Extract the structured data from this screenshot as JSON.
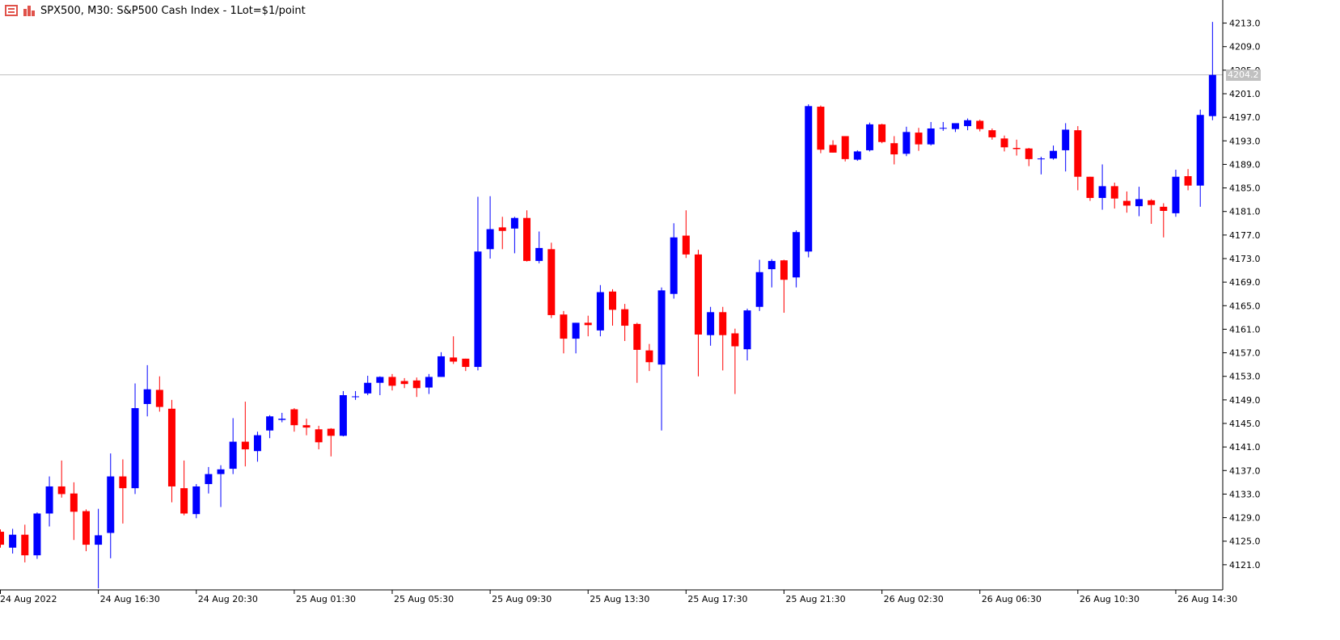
{
  "header": {
    "title": "SPX500, M30:  S&P500 Cash Index - 1Lot=$1/point"
  },
  "colors": {
    "bull": "#0000ff",
    "bear": "#ff0000",
    "axis": "#000000",
    "price_line": "#c0c0c0",
    "price_tag_bg": "#c0c0c0"
  },
  "current_price": "4204.2",
  "chart_data": {
    "type": "candlestick",
    "title": "SPX500, M30",
    "ylim": [
      4117.0,
      4215.0
    ],
    "y_ticks": [
      "4121.0",
      "4125.0",
      "4129.0",
      "4133.0",
      "4137.0",
      "4141.0",
      "4145.0",
      "4149.0",
      "4153.0",
      "4157.0",
      "4161.0",
      "4165.0",
      "4169.0",
      "4173.0",
      "4177.0",
      "4181.0",
      "4185.0",
      "4189.0",
      "4193.0",
      "4197.0",
      "4201.0",
      "4205.0",
      "4209.0",
      "4213.0"
    ],
    "x_labels": [
      "24 Aug 2022",
      "24 Aug 16:30",
      "24 Aug 20:30",
      "25 Aug 01:30",
      "25 Aug 05:30",
      "25 Aug 09:30",
      "25 Aug 13:30",
      "25 Aug 17:30",
      "25 Aug 21:30",
      "26 Aug 02:30",
      "26 Aug 06:30",
      "26 Aug 10:30",
      "26 Aug 14:30"
    ],
    "x_label_index": [
      0,
      8,
      16,
      24,
      32,
      40,
      48,
      56,
      64,
      72,
      80,
      88,
      96
    ],
    "candles": [
      {
        "o": 4126.6,
        "h": 4127.0,
        "l": 4123.9,
        "c": 4124.4
      },
      {
        "o": 4123.9,
        "h": 4127.1,
        "l": 4122.9,
        "c": 4126.1
      },
      {
        "o": 4126.1,
        "h": 4127.8,
        "l": 4121.4,
        "c": 4122.6
      },
      {
        "o": 4122.6,
        "h": 4129.9,
        "l": 4122.0,
        "c": 4129.7
      },
      {
        "o": 4129.7,
        "h": 4136.0,
        "l": 4127.5,
        "c": 4134.3
      },
      {
        "o": 4134.3,
        "h": 4138.7,
        "l": 4132.4,
        "c": 4133.0
      },
      {
        "o": 4133.1,
        "h": 4135.0,
        "l": 4125.2,
        "c": 4130.0
      },
      {
        "o": 4130.1,
        "h": 4130.4,
        "l": 4123.3,
        "c": 4124.4
      },
      {
        "o": 4124.4,
        "h": 4130.5,
        "l": 4117.0,
        "c": 4126.0
      },
      {
        "o": 4126.4,
        "h": 4139.9,
        "l": 4122.1,
        "c": 4136.0
      },
      {
        "o": 4136.0,
        "h": 4138.9,
        "l": 4128.0,
        "c": 4134.0
      },
      {
        "o": 4134.0,
        "h": 4151.8,
        "l": 4133.0,
        "c": 4147.6
      },
      {
        "o": 4148.3,
        "h": 4154.9,
        "l": 4146.2,
        "c": 4150.8
      },
      {
        "o": 4150.7,
        "h": 4153.0,
        "l": 4147.0,
        "c": 4147.8
      },
      {
        "o": 4147.5,
        "h": 4149.0,
        "l": 4131.6,
        "c": 4134.3
      },
      {
        "o": 4134.0,
        "h": 4138.7,
        "l": 4129.4,
        "c": 4129.7
      },
      {
        "o": 4129.6,
        "h": 4134.7,
        "l": 4128.9,
        "c": 4134.3
      },
      {
        "o": 4134.7,
        "h": 4137.6,
        "l": 4133.1,
        "c": 4136.4
      },
      {
        "o": 4136.4,
        "h": 4137.9,
        "l": 4130.8,
        "c": 4137.2
      },
      {
        "o": 4137.3,
        "h": 4145.9,
        "l": 4136.4,
        "c": 4141.9
      },
      {
        "o": 4141.9,
        "h": 4148.7,
        "l": 4137.7,
        "c": 4140.6
      },
      {
        "o": 4140.3,
        "h": 4143.6,
        "l": 4138.5,
        "c": 4143.0
      },
      {
        "o": 4143.8,
        "h": 4146.4,
        "l": 4142.5,
        "c": 4146.2
      },
      {
        "o": 4145.6,
        "h": 4146.8,
        "l": 4145.2,
        "c": 4145.8
      },
      {
        "o": 4147.4,
        "h": 4147.6,
        "l": 4143.6,
        "c": 4144.7
      },
      {
        "o": 4144.7,
        "h": 4145.8,
        "l": 4143.0,
        "c": 4144.3
      },
      {
        "o": 4144.0,
        "h": 4144.6,
        "l": 4140.6,
        "c": 4141.8
      },
      {
        "o": 4144.1,
        "h": 4144.2,
        "l": 4139.4,
        "c": 4142.9
      },
      {
        "o": 4142.9,
        "h": 4150.5,
        "l": 4142.8,
        "c": 4149.8
      },
      {
        "o": 4149.5,
        "h": 4150.5,
        "l": 4149.0,
        "c": 4149.6
      },
      {
        "o": 4150.1,
        "h": 4153.1,
        "l": 4149.8,
        "c": 4151.9
      },
      {
        "o": 4151.9,
        "h": 4153.0,
        "l": 4149.8,
        "c": 4152.9
      },
      {
        "o": 4152.9,
        "h": 4153.4,
        "l": 4150.6,
        "c": 4151.4
      },
      {
        "o": 4152.2,
        "h": 4152.7,
        "l": 4151.0,
        "c": 4151.7
      },
      {
        "o": 4152.3,
        "h": 4152.8,
        "l": 4149.5,
        "c": 4151.0
      },
      {
        "o": 4151.1,
        "h": 4153.4,
        "l": 4150.0,
        "c": 4152.9
      },
      {
        "o": 4152.9,
        "h": 4157.1,
        "l": 4152.9,
        "c": 4156.4
      },
      {
        "o": 4156.2,
        "h": 4159.8,
        "l": 4155.1,
        "c": 4155.5
      },
      {
        "o": 4156.0,
        "h": 4156.0,
        "l": 4153.9,
        "c": 4154.6
      },
      {
        "o": 4154.6,
        "h": 4183.5,
        "l": 4154.0,
        "c": 4174.2
      },
      {
        "o": 4174.6,
        "h": 4183.6,
        "l": 4173.0,
        "c": 4178.0
      },
      {
        "o": 4178.3,
        "h": 4180.1,
        "l": 4174.6,
        "c": 4177.7
      },
      {
        "o": 4178.1,
        "h": 4180.1,
        "l": 4173.9,
        "c": 4179.9
      },
      {
        "o": 4179.9,
        "h": 4181.2,
        "l": 4172.5,
        "c": 4172.6
      },
      {
        "o": 4172.6,
        "h": 4177.6,
        "l": 4172.2,
        "c": 4174.8
      },
      {
        "o": 4174.6,
        "h": 4175.7,
        "l": 4162.9,
        "c": 4163.4
      },
      {
        "o": 4163.5,
        "h": 4164.1,
        "l": 4156.9,
        "c": 4159.4
      },
      {
        "o": 4159.4,
        "h": 4162.1,
        "l": 4156.9,
        "c": 4162.1
      },
      {
        "o": 4162.1,
        "h": 4163.3,
        "l": 4159.8,
        "c": 4161.7
      },
      {
        "o": 4160.8,
        "h": 4168.5,
        "l": 4159.8,
        "c": 4167.3
      },
      {
        "o": 4167.4,
        "h": 4167.8,
        "l": 4161.6,
        "c": 4164.3
      },
      {
        "o": 4164.4,
        "h": 4165.3,
        "l": 4159.0,
        "c": 4161.6
      },
      {
        "o": 4161.9,
        "h": 4162.1,
        "l": 4151.9,
        "c": 4157.5
      },
      {
        "o": 4157.4,
        "h": 4158.5,
        "l": 4153.9,
        "c": 4155.4
      },
      {
        "o": 4155.0,
        "h": 4168.1,
        "l": 4143.8,
        "c": 4167.6
      },
      {
        "o": 4167.0,
        "h": 4179.0,
        "l": 4166.2,
        "c": 4176.6
      },
      {
        "o": 4176.9,
        "h": 4181.2,
        "l": 4173.1,
        "c": 4173.7
      },
      {
        "o": 4173.7,
        "h": 4174.5,
        "l": 4153.0,
        "c": 4160.1
      },
      {
        "o": 4160.0,
        "h": 4164.8,
        "l": 4158.2,
        "c": 4163.9
      },
      {
        "o": 4163.9,
        "h": 4164.8,
        "l": 4154.0,
        "c": 4160.0
      },
      {
        "o": 4160.3,
        "h": 4161.1,
        "l": 4150.0,
        "c": 4158.1
      },
      {
        "o": 4157.6,
        "h": 4164.5,
        "l": 4155.7,
        "c": 4164.2
      },
      {
        "o": 4164.8,
        "h": 4172.8,
        "l": 4164.1,
        "c": 4170.7
      },
      {
        "o": 4171.2,
        "h": 4172.9,
        "l": 4168.1,
        "c": 4172.6
      },
      {
        "o": 4172.7,
        "h": 4172.8,
        "l": 4163.8,
        "c": 4169.4
      },
      {
        "o": 4169.8,
        "h": 4177.8,
        "l": 4168.1,
        "c": 4177.5
      },
      {
        "o": 4174.2,
        "h": 4199.2,
        "l": 4173.2,
        "c": 4198.9
      },
      {
        "o": 4198.8,
        "h": 4199.0,
        "l": 4190.9,
        "c": 4191.5
      },
      {
        "o": 4192.3,
        "h": 4193.1,
        "l": 4191.0,
        "c": 4191.0
      },
      {
        "o": 4193.8,
        "h": 4193.8,
        "l": 4189.5,
        "c": 4189.9
      },
      {
        "o": 4189.8,
        "h": 4191.4,
        "l": 4189.6,
        "c": 4191.2
      },
      {
        "o": 4191.4,
        "h": 4196.1,
        "l": 4191.2,
        "c": 4195.8
      },
      {
        "o": 4195.8,
        "h": 4195.9,
        "l": 4192.6,
        "c": 4192.8
      },
      {
        "o": 4192.6,
        "h": 4193.8,
        "l": 4189.0,
        "c": 4190.7
      },
      {
        "o": 4190.8,
        "h": 4195.4,
        "l": 4190.4,
        "c": 4194.5
      },
      {
        "o": 4194.4,
        "h": 4195.2,
        "l": 4191.3,
        "c": 4192.4
      },
      {
        "o": 4192.4,
        "h": 4196.2,
        "l": 4192.2,
        "c": 4195.1
      },
      {
        "o": 4195.1,
        "h": 4196.2,
        "l": 4194.7,
        "c": 4195.2
      },
      {
        "o": 4195.0,
        "h": 4195.8,
        "l": 4194.5,
        "c": 4196.0
      },
      {
        "o": 4195.5,
        "h": 4196.8,
        "l": 4194.8,
        "c": 4196.5
      },
      {
        "o": 4196.4,
        "h": 4196.6,
        "l": 4194.6,
        "c": 4195.0
      },
      {
        "o": 4194.8,
        "h": 4195.1,
        "l": 4193.2,
        "c": 4193.6
      },
      {
        "o": 4193.4,
        "h": 4193.9,
        "l": 4191.2,
        "c": 4191.9
      },
      {
        "o": 4191.8,
        "h": 4193.2,
        "l": 4190.5,
        "c": 4191.6
      },
      {
        "o": 4191.7,
        "h": 4191.8,
        "l": 4188.7,
        "c": 4189.9
      },
      {
        "o": 4189.9,
        "h": 4190.3,
        "l": 4187.3,
        "c": 4190.0
      },
      {
        "o": 4190.0,
        "h": 4192.2,
        "l": 4189.8,
        "c": 4191.3
      },
      {
        "o": 4191.4,
        "h": 4196.0,
        "l": 4187.8,
        "c": 4194.9
      },
      {
        "o": 4194.8,
        "h": 4195.5,
        "l": 4184.6,
        "c": 4186.9
      },
      {
        "o": 4186.9,
        "h": 4186.9,
        "l": 4182.8,
        "c": 4183.3
      },
      {
        "o": 4183.3,
        "h": 4189.0,
        "l": 4181.3,
        "c": 4185.3
      },
      {
        "o": 4185.3,
        "h": 4185.9,
        "l": 4181.5,
        "c": 4183.2
      },
      {
        "o": 4182.8,
        "h": 4184.4,
        "l": 4180.8,
        "c": 4182.0
      },
      {
        "o": 4181.9,
        "h": 4185.2,
        "l": 4180.2,
        "c": 4183.1
      },
      {
        "o": 4182.9,
        "h": 4183.1,
        "l": 4178.9,
        "c": 4182.1
      },
      {
        "o": 4181.8,
        "h": 4182.4,
        "l": 4176.6,
        "c": 4181.1
      },
      {
        "o": 4180.7,
        "h": 4188.1,
        "l": 4180.1,
        "c": 4186.9
      },
      {
        "o": 4187.0,
        "h": 4188.2,
        "l": 4184.6,
        "c": 4185.4
      },
      {
        "o": 4185.4,
        "h": 4198.3,
        "l": 4181.8,
        "c": 4197.4
      },
      {
        "o": 4197.2,
        "h": 4213.2,
        "l": 4196.5,
        "c": 4204.2
      }
    ]
  }
}
